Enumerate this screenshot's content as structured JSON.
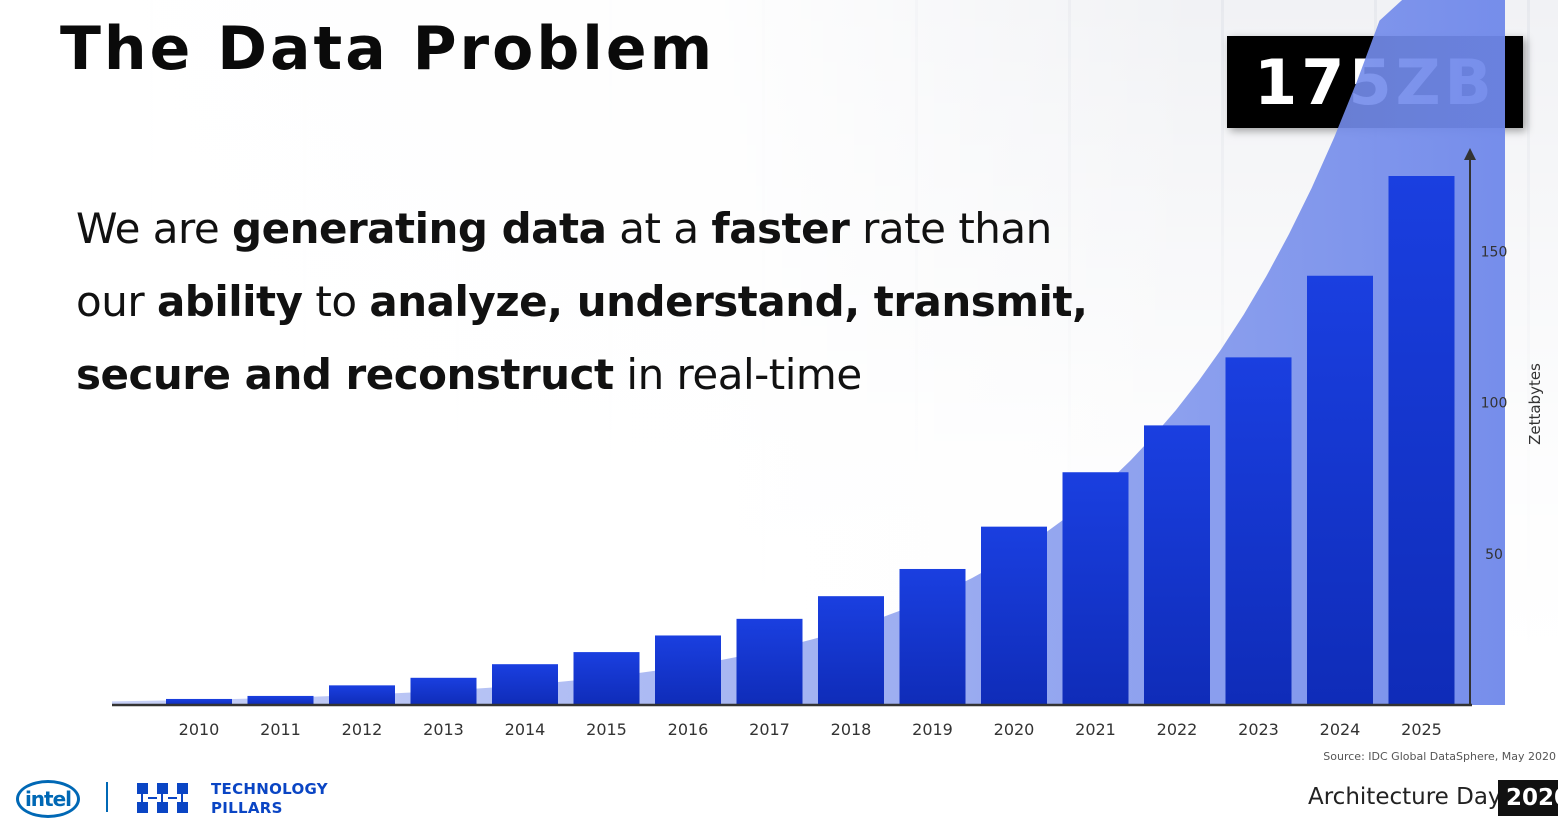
{
  "slide": {
    "title": "The Data Problem",
    "big_stat": "175ZB",
    "statement_lines": [
      [
        {
          "t": "We are ",
          "b": false
        },
        {
          "t": "generating data",
          "b": true
        },
        {
          "t": " at a ",
          "b": false
        },
        {
          "t": "faster",
          "b": true
        },
        {
          "t": " rate than",
          "b": false
        }
      ],
      [
        {
          "t": "our ",
          "b": false
        },
        {
          "t": "ability",
          "b": true
        },
        {
          "t": " to ",
          "b": false
        },
        {
          "t": "analyze, understand, transmit,",
          "b": true
        }
      ],
      [
        {
          "t": "secure and reconstruct",
          "b": true
        },
        {
          "t": " in real-time",
          "b": false
        }
      ]
    ]
  },
  "chart_data": {
    "type": "bar",
    "categories": [
      "2010",
      "2011",
      "2012",
      "2013",
      "2014",
      "2015",
      "2016",
      "2017",
      "2018",
      "2019",
      "2020",
      "2021",
      "2022",
      "2023",
      "2024",
      "2025"
    ],
    "values": [
      2,
      3,
      6.5,
      9,
      13.5,
      17.5,
      23,
      28.5,
      36,
      45,
      59,
      77,
      92.5,
      115,
      142,
      175
    ],
    "ylabel": "Zettabytes",
    "yticks": [
      50,
      100,
      150
    ],
    "ylim": [
      0,
      178
    ],
    "bar_color": "#1537d6",
    "area_color": "#7f96ec"
  },
  "footer": {
    "logo_text": "intel",
    "brand_lines": [
      "TECHNOLOGY",
      "PILLARS"
    ],
    "source": "Source: IDC Global DataSphere, May 2020",
    "event_name": "Architecture Day",
    "event_year": "2020"
  }
}
